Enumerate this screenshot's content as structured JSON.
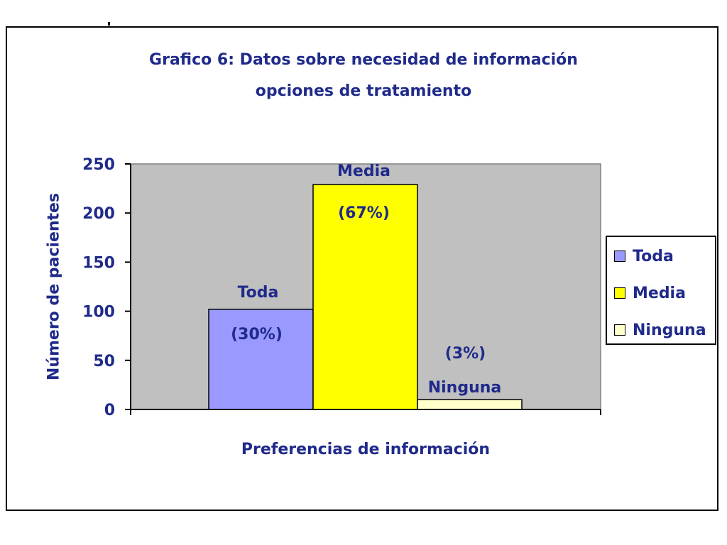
{
  "chart_data": {
    "type": "bar",
    "title_line1": "Grafico 6: Datos sobre necesidad de información",
    "title_line2": "opciones de tratamiento",
    "xlabel": "Preferencias de información",
    "ylabel": "Número de pacientes",
    "ylim": [
      0,
      250
    ],
    "yticks": [
      "0",
      "50",
      "100",
      "150",
      "200",
      "250"
    ],
    "grid": false,
    "plot_background": "#c0c0c0",
    "legend_position": "right",
    "series": [
      {
        "name": "Toda",
        "value": 102,
        "label": "Toda",
        "pct": "(30%)",
        "color": "#9999ff"
      },
      {
        "name": "Media",
        "value": 229,
        "label": "Media",
        "pct": "(67%)",
        "color": "#ffff00"
      },
      {
        "name": "Ninguna",
        "value": 10,
        "label": "Ninguna",
        "pct": "(3%)",
        "color": "#ffffcc"
      }
    ]
  }
}
